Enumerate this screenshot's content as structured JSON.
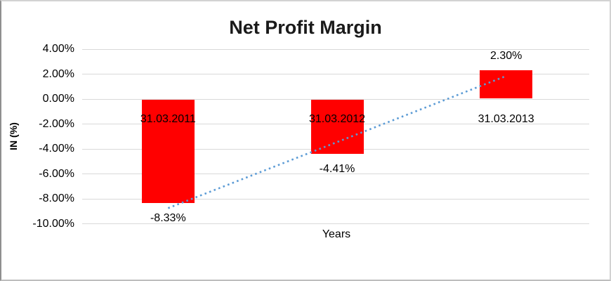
{
  "chart_data": {
    "type": "bar",
    "title": "Net Profit Margin",
    "xlabel": "Years",
    "ylabel": "IN (%)",
    "categories": [
      "31.03.2011",
      "31.03.2012",
      "31.03.2013"
    ],
    "values": [
      -8.33,
      -4.41,
      2.3
    ],
    "data_labels": [
      "-8.33%",
      "-4.41%",
      "2.30%"
    ],
    "ylim": [
      -10,
      4
    ],
    "ytick_values": [
      4,
      2,
      0,
      -2,
      -4,
      -6,
      -8,
      -10
    ],
    "ytick_labels": [
      "4.00%",
      "2.00%",
      "0.00%",
      "-2.00%",
      "-4.00%",
      "-6.00%",
      "-8.00%",
      "-10.00%"
    ],
    "grid": true,
    "legend": false,
    "colors": {
      "bar": "#FF0000",
      "trendline": "#5B9BD5",
      "gridline": "#D9D9D9",
      "text": "#000000",
      "background": "#FFFFFF"
    },
    "trendline": {
      "type": "linear",
      "style": "dotted",
      "start_value": -8.75,
      "end_value": 1.85
    }
  }
}
